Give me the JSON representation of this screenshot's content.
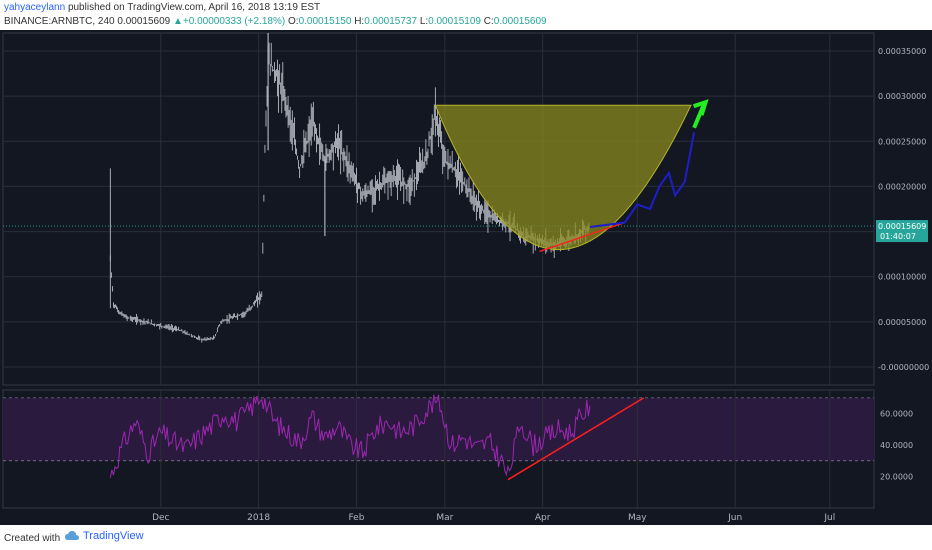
{
  "header": {
    "author": "yahyaceylann",
    "published": "published on TradingView.com, April 16, 2018 13:19 EST",
    "symbol": "BINANCE:ARNBTC, 240",
    "last": "0.00015609",
    "change": "+0.00000333 (+2.18%)",
    "o_label": "O:",
    "o": "0.00015150",
    "h_label": "H:",
    "h": "0.00015737",
    "l_label": "L:",
    "l": "0.00015109",
    "c_label": "C:",
    "c": "0.00015609"
  },
  "footer": {
    "created": "Created with",
    "brand": "TradingView"
  },
  "colors": {
    "background": "#131722",
    "grid": "#2a2e39",
    "candle": "#c9ccd4",
    "cup": "#8a8a1e",
    "rsi_line": "#9c27b0",
    "rsi_band": "#2a1a3e",
    "trend_line": "#ff1e1e",
    "projection": "#1e1ec8",
    "arrow": "#22ee22",
    "price_tag": "#26a69a"
  },
  "chart_data": [
    {
      "type": "candlestick",
      "title": "",
      "ylim": [
        -2e-05,
        0.00037
      ],
      "yticks": [
        "0.00035000",
        "0.00030000",
        "0.00025000",
        "0.00020000",
        "0.00015000",
        "0.00010000",
        "0.00005000",
        "-0.00000000"
      ],
      "ytick_values": [
        0.00035,
        0.0003,
        0.00025,
        0.0002,
        0.00015,
        0.0001,
        5e-05,
        0.0
      ],
      "current_price": "0.00015609",
      "countdown": "01:40:07",
      "price_series": [
        [
          "2017-11-15",
          0.000118
        ],
        [
          "2017-11-16",
          7e-05
        ],
        [
          "2017-11-18",
          6e-05
        ],
        [
          "2017-11-20",
          5.5e-05
        ],
        [
          "2017-11-24",
          5.2e-05
        ],
        [
          "2017-11-28",
          4.8e-05
        ],
        [
          "2017-12-02",
          4.5e-05
        ],
        [
          "2017-12-06",
          4.2e-05
        ],
        [
          "2017-12-10",
          3.6e-05
        ],
        [
          "2017-12-14",
          3e-05
        ],
        [
          "2017-12-18",
          3.2e-05
        ],
        [
          "2017-12-20",
          5e-05
        ],
        [
          "2017-12-24",
          5.5e-05
        ],
        [
          "2017-12-28",
          6e-05
        ],
        [
          "2018-01-02",
          8e-05
        ],
        [
          "2018-01-03",
          0.00024
        ],
        [
          "2018-01-04",
          0.00034
        ],
        [
          "2018-01-07",
          0.00032
        ],
        [
          "2018-01-10",
          0.00029
        ],
        [
          "2018-01-14",
          0.00022
        ],
        [
          "2018-01-18",
          0.00027
        ],
        [
          "2018-01-22",
          0.00023
        ],
        [
          "2018-01-26",
          0.00025
        ],
        [
          "2018-01-30",
          0.00022
        ],
        [
          "2018-02-03",
          0.00019
        ],
        [
          "2018-02-08",
          0.0002
        ],
        [
          "2018-02-13",
          0.00021
        ],
        [
          "2018-02-18",
          0.0002
        ],
        [
          "2018-02-23",
          0.00023
        ],
        [
          "2018-02-26",
          0.00028
        ],
        [
          "2018-03-01",
          0.00023
        ],
        [
          "2018-03-06",
          0.00021
        ],
        [
          "2018-03-11",
          0.00018
        ],
        [
          "2018-03-16",
          0.000165
        ],
        [
          "2018-03-21",
          0.00016
        ],
        [
          "2018-03-26",
          0.000145
        ],
        [
          "2018-03-31",
          0.00014
        ],
        [
          "2018-04-05",
          0.000135
        ],
        [
          "2018-04-10",
          0.000142
        ],
        [
          "2018-04-16",
          0.00015609
        ]
      ],
      "cup": {
        "rim_left": [
          "2018-02-26",
          0.00029
        ],
        "rim_right": [
          "2018-05-18",
          0.00029
        ],
        "bottom": [
          "2018-04-06",
          0.00013
        ]
      },
      "trend_line": [
        [
          "2018-03-31",
          0.000128
        ],
        [
          "2018-04-27",
          0.00016
        ]
      ],
      "projection": [
        [
          "2018-04-16",
          0.000155
        ],
        [
          "2018-04-27",
          0.00016
        ],
        [
          "2018-05-01",
          0.00018
        ],
        [
          "2018-05-05",
          0.000175
        ],
        [
          "2018-05-08",
          0.0002
        ],
        [
          "2018-05-11",
          0.000215
        ],
        [
          "2018-05-13",
          0.00019
        ],
        [
          "2018-05-16",
          0.000205
        ],
        [
          "2018-05-19",
          0.00026
        ]
      ],
      "arrow": {
        "from": [
          "2018-05-19",
          0.000265
        ],
        "to": [
          "2018-05-22",
          0.00029
        ]
      }
    },
    {
      "type": "line",
      "title": "",
      "ylim": [
        0,
        75
      ],
      "yticks": [
        "60.0000",
        "40.0000",
        "20.0000"
      ],
      "ytick_values": [
        60,
        40,
        20
      ],
      "band": [
        30,
        70
      ],
      "rsi_series": [
        [
          "2017-11-15",
          20
        ],
        [
          "2017-11-19",
          40
        ],
        [
          "2017-11-23",
          55
        ],
        [
          "2017-11-27",
          35
        ],
        [
          "2017-12-01",
          48
        ],
        [
          "2017-12-05",
          42
        ],
        [
          "2017-12-09",
          38
        ],
        [
          "2017-12-13",
          45
        ],
        [
          "2017-12-17",
          52
        ],
        [
          "2017-12-21",
          60
        ],
        [
          "2017-12-25",
          55
        ],
        [
          "2017-12-29",
          62
        ],
        [
          "2018-01-02",
          72
        ],
        [
          "2018-01-06",
          55
        ],
        [
          "2018-01-10",
          48
        ],
        [
          "2018-01-14",
          42
        ],
        [
          "2018-01-18",
          58
        ],
        [
          "2018-01-22",
          45
        ],
        [
          "2018-01-26",
          52
        ],
        [
          "2018-01-30",
          40
        ],
        [
          "2018-02-03",
          35
        ],
        [
          "2018-02-07",
          50
        ],
        [
          "2018-02-11",
          55
        ],
        [
          "2018-02-15",
          48
        ],
        [
          "2018-02-19",
          52
        ],
        [
          "2018-02-23",
          62
        ],
        [
          "2018-02-27",
          70
        ],
        [
          "2018-03-03",
          40
        ],
        [
          "2018-03-07",
          45
        ],
        [
          "2018-03-11",
          38
        ],
        [
          "2018-03-15",
          42
        ],
        [
          "2018-03-19",
          30
        ],
        [
          "2018-03-21",
          20
        ],
        [
          "2018-03-25",
          55
        ],
        [
          "2018-03-29",
          40
        ],
        [
          "2018-04-02",
          45
        ],
        [
          "2018-04-06",
          50
        ],
        [
          "2018-04-10",
          48
        ],
        [
          "2018-04-13",
          58
        ],
        [
          "2018-04-16",
          65
        ]
      ],
      "trend_line": [
        [
          "2018-03-21",
          18
        ],
        [
          "2018-05-03",
          70
        ]
      ]
    }
  ],
  "x_axis": {
    "ticks": [
      {
        "label": "Dec",
        "date": "2017-12-01"
      },
      {
        "label": "2018",
        "date": "2018-01-01"
      },
      {
        "label": "Feb",
        "date": "2018-02-01"
      },
      {
        "label": "Mar",
        "date": "2018-03-01"
      },
      {
        "label": "Apr",
        "date": "2018-04-01"
      },
      {
        "label": "May",
        "date": "2018-05-01"
      },
      {
        "label": "Jun",
        "date": "2018-06-01"
      },
      {
        "label": "Jul",
        "date": "2018-07-01"
      }
    ],
    "xlim": [
      "2017-10-12",
      "2018-07-15"
    ]
  }
}
